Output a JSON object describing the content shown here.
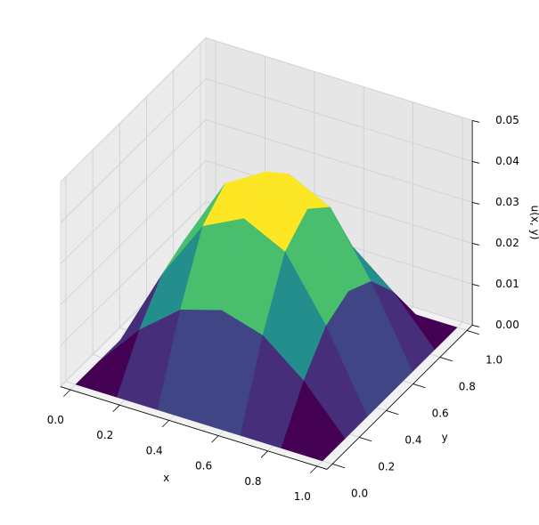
{
  "chart_data": {
    "type": "surface",
    "x": [
      0,
      0.167,
      0.333,
      0.5,
      0.667,
      0.833,
      1
    ],
    "y": [
      0,
      0.167,
      0.333,
      0.5,
      0.667,
      0.833,
      1
    ],
    "z": [
      [
        0,
        0,
        0,
        0,
        0,
        0,
        0
      ],
      [
        0,
        0.011,
        0.019,
        0.022,
        0.019,
        0.011,
        0
      ],
      [
        0,
        0.019,
        0.034,
        0.039,
        0.034,
        0.019,
        0
      ],
      [
        0,
        0.022,
        0.039,
        0.045,
        0.039,
        0.022,
        0
      ],
      [
        0,
        0.019,
        0.034,
        0.039,
        0.034,
        0.019,
        0
      ],
      [
        0,
        0.011,
        0.019,
        0.022,
        0.019,
        0.011,
        0
      ],
      [
        0,
        0,
        0,
        0,
        0,
        0,
        0
      ]
    ],
    "colormap": "viridis",
    "xlabel": "x",
    "ylabel": "y",
    "zlabel": "u(x, y)",
    "xlim": [
      0,
      1
    ],
    "ylim": [
      0,
      1
    ],
    "zlim": [
      0,
      0.05
    ],
    "xticks": [
      {
        "value": 0,
        "label": "0.0"
      },
      0.2,
      0.4,
      0.6,
      0.8,
      {
        "value": 1,
        "label": "1.0"
      }
    ],
    "yticks": [
      {
        "value": 0,
        "label": "0.0"
      },
      0.2,
      0.4,
      0.6,
      0.8,
      {
        "value": 1,
        "label": "1.0"
      }
    ],
    "zticks": [
      {
        "value": 0,
        "label": "0.00"
      },
      {
        "value": 0.01,
        "label": "0.01"
      },
      {
        "value": 0.02,
        "label": "0.02"
      },
      {
        "value": 0.03,
        "label": "0.03"
      },
      {
        "value": 0.04,
        "label": "0.04"
      },
      {
        "value": 0.05,
        "label": "0.05"
      }
    ],
    "grid": true
  }
}
